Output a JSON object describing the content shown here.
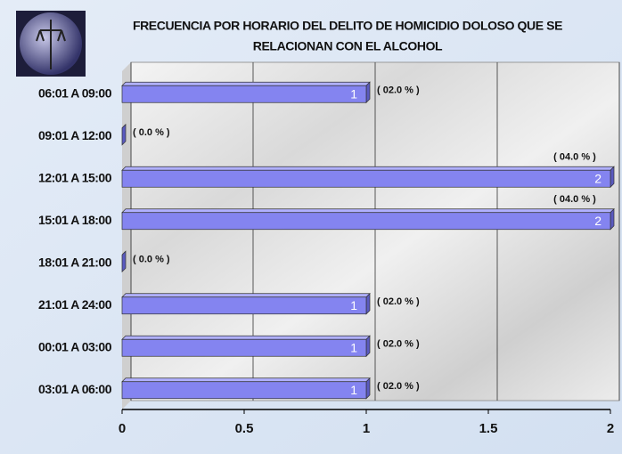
{
  "chart_data": {
    "type": "bar",
    "orientation": "horizontal",
    "title_lines": [
      "FRECUENCIA POR HORARIO DEL DELITO DE HOMICIDIO DOLOSO QUE SE",
      "RELACIONAN CON EL ALCOHOL"
    ],
    "categories": [
      "06:01 A 09:00",
      "09:01 A 12:00",
      "12:01 A 15:00",
      "15:01 A 18:00",
      "18:01 A 21:00",
      "21:01 A 24:00",
      "00:01 A 03:00",
      "03:01 A 06:00"
    ],
    "values": [
      1,
      0,
      2,
      2,
      0,
      1,
      1,
      1
    ],
    "percent_labels": [
      "( 02.0 % )",
      "( 0.0 % )",
      "( 04.0 % )",
      "( 04.0 % )",
      "( 0.0 % )",
      "( 02.0 % )",
      "( 02.0 % )",
      "( 02.0 % )"
    ],
    "color": "#8484f0",
    "xlim": [
      0,
      2
    ],
    "xticks": [
      0,
      0.5,
      1,
      1.5,
      2
    ],
    "grid": true
  }
}
